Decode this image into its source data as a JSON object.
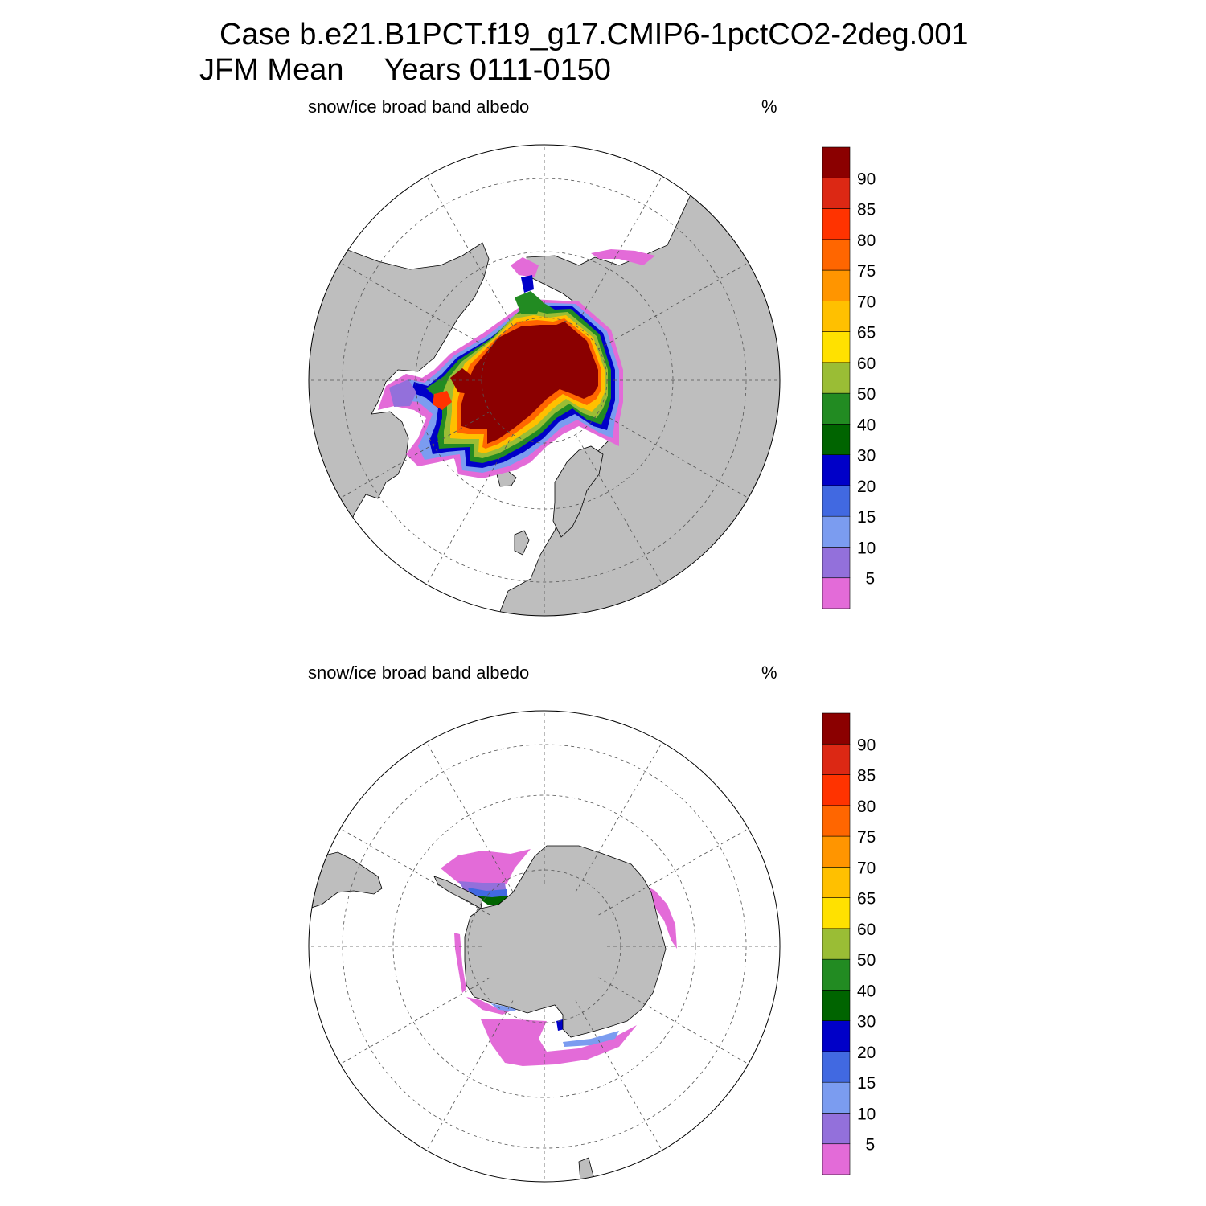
{
  "figure": {
    "title_case": "Case b.e21.B1PCT.f19_g17.CMIP6-1pctCO2-2deg.001",
    "title_period": "JFM Mean",
    "title_years": "Years 0111-0150"
  },
  "panels": [
    {
      "id": "north",
      "hemisphere": "Northern Hemisphere (Arctic)",
      "variable_label": "snow/ice broad band albedo",
      "units_label": "%"
    },
    {
      "id": "south",
      "hemisphere": "Southern Hemisphere (Antarctic)",
      "variable_label": "snow/ice broad band albedo",
      "units_label": "%"
    }
  ],
  "colorbar": {
    "labels": [
      "5",
      "10",
      "15",
      "20",
      "30",
      "40",
      "50",
      "60",
      "65",
      "70",
      "75",
      "80",
      "85",
      "90"
    ],
    "colors": [
      "#e36bd8",
      "#9370db",
      "#7b9cf0",
      "#4169e1",
      "#0000c8",
      "#006400",
      "#228b22",
      "#9abd35",
      "#ffe100",
      "#ffc000",
      "#ff9500",
      "#ff6600",
      "#ff3300",
      "#dc2814",
      "#8b0000"
    ]
  },
  "map_colors": {
    "land": "#bebebe",
    "ocean": "#ffffff",
    "grid": "#555555"
  }
}
